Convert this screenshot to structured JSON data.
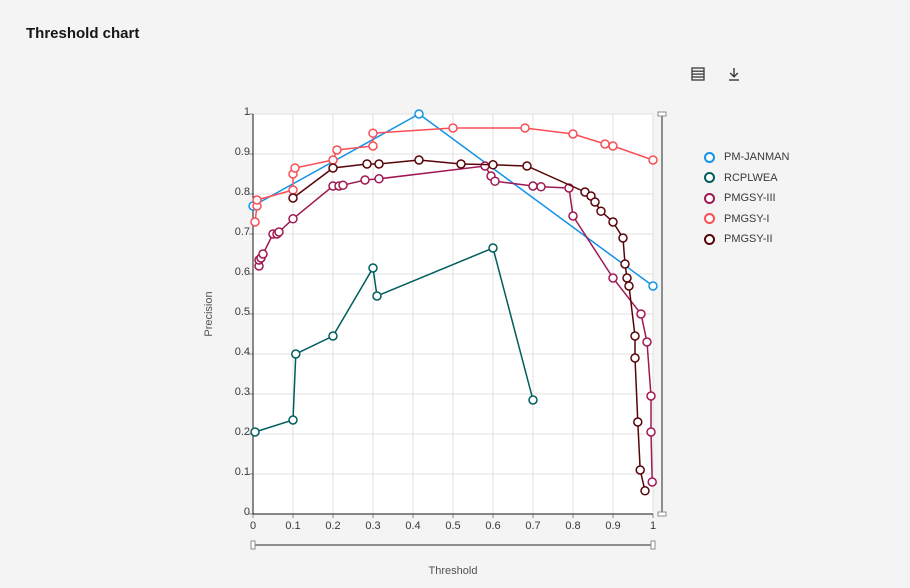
{
  "page": {
    "title": "Threshold chart"
  },
  "toolbar": {
    "table_icon": "table-icon",
    "download_icon": "download-icon"
  },
  "chart_data": {
    "type": "line",
    "xlabel": "Threshold",
    "ylabel": "Precision",
    "xlim": [
      0,
      1
    ],
    "ylim": [
      0,
      1
    ],
    "xticks": [
      "0",
      "0.1",
      "0.2",
      "0.3",
      "0.4",
      "0.5",
      "0.6",
      "0.7",
      "0.8",
      "0.9",
      "1"
    ],
    "yticks": [
      "0",
      "0.1",
      "0.2",
      "0.3",
      "0.4",
      "0.5",
      "0.6",
      "0.7",
      "0.8",
      "0.9",
      "1"
    ],
    "grid": true,
    "legend": "right",
    "series": [
      {
        "name": "PM-JANMAN",
        "color": "#1192e8",
        "points": [
          [
            0.0,
            0.77
          ],
          [
            0.415,
            1.0
          ],
          [
            1.0,
            0.57
          ]
        ]
      },
      {
        "name": "RCPLWEA",
        "color": "#005d5d",
        "points": [
          [
            0.005,
            0.205
          ],
          [
            0.1,
            0.235
          ],
          [
            0.107,
            0.4
          ],
          [
            0.2,
            0.445
          ],
          [
            0.3,
            0.615
          ],
          [
            0.31,
            0.545
          ],
          [
            0.6,
            0.665
          ],
          [
            0.7,
            0.285
          ]
        ]
      },
      {
        "name": "PMGSY-III",
        "color": "#9f1853",
        "points": [
          [
            0.015,
            0.62
          ],
          [
            0.015,
            0.635
          ],
          [
            0.02,
            0.64
          ],
          [
            0.025,
            0.65
          ],
          [
            0.05,
            0.7
          ],
          [
            0.06,
            0.7
          ],
          [
            0.065,
            0.705
          ],
          [
            0.1,
            0.738
          ],
          [
            0.2,
            0.82
          ],
          [
            0.215,
            0.82
          ],
          [
            0.225,
            0.822
          ],
          [
            0.28,
            0.835
          ],
          [
            0.315,
            0.838
          ],
          [
            0.58,
            0.87
          ],
          [
            0.595,
            0.845
          ],
          [
            0.605,
            0.832
          ],
          [
            0.7,
            0.82
          ],
          [
            0.72,
            0.818
          ],
          [
            0.79,
            0.815
          ],
          [
            0.8,
            0.745
          ],
          [
            0.9,
            0.59
          ],
          [
            0.97,
            0.5
          ],
          [
            0.985,
            0.43
          ],
          [
            0.995,
            0.295
          ],
          [
            0.995,
            0.205
          ],
          [
            0.998,
            0.08
          ]
        ]
      },
      {
        "name": "PMGSY-I",
        "color": "#fa4d56",
        "points": [
          [
            0.005,
            0.73
          ],
          [
            0.01,
            0.77
          ],
          [
            0.01,
            0.785
          ],
          [
            0.1,
            0.81
          ],
          [
            0.1,
            0.85
          ],
          [
            0.105,
            0.865
          ],
          [
            0.2,
            0.885
          ],
          [
            0.21,
            0.91
          ],
          [
            0.3,
            0.92
          ],
          [
            0.3,
            0.952
          ],
          [
            0.5,
            0.965
          ],
          [
            0.68,
            0.965
          ],
          [
            0.8,
            0.95
          ],
          [
            0.88,
            0.925
          ],
          [
            0.9,
            0.92
          ],
          [
            1.0,
            0.885
          ]
        ]
      },
      {
        "name": "PMGSY-II",
        "color": "#570408",
        "points": [
          [
            0.1,
            0.79
          ],
          [
            0.2,
            0.865
          ],
          [
            0.285,
            0.875
          ],
          [
            0.315,
            0.875
          ],
          [
            0.415,
            0.885
          ],
          [
            0.52,
            0.875
          ],
          [
            0.6,
            0.873
          ],
          [
            0.685,
            0.87
          ],
          [
            0.83,
            0.805
          ],
          [
            0.845,
            0.795
          ],
          [
            0.855,
            0.78
          ],
          [
            0.87,
            0.757
          ],
          [
            0.9,
            0.73
          ],
          [
            0.925,
            0.69
          ],
          [
            0.93,
            0.625
          ],
          [
            0.935,
            0.59
          ],
          [
            0.94,
            0.57
          ],
          [
            0.955,
            0.445
          ],
          [
            0.955,
            0.39
          ],
          [
            0.962,
            0.23
          ],
          [
            0.968,
            0.11
          ],
          [
            0.98,
            0.058
          ]
        ]
      }
    ]
  }
}
